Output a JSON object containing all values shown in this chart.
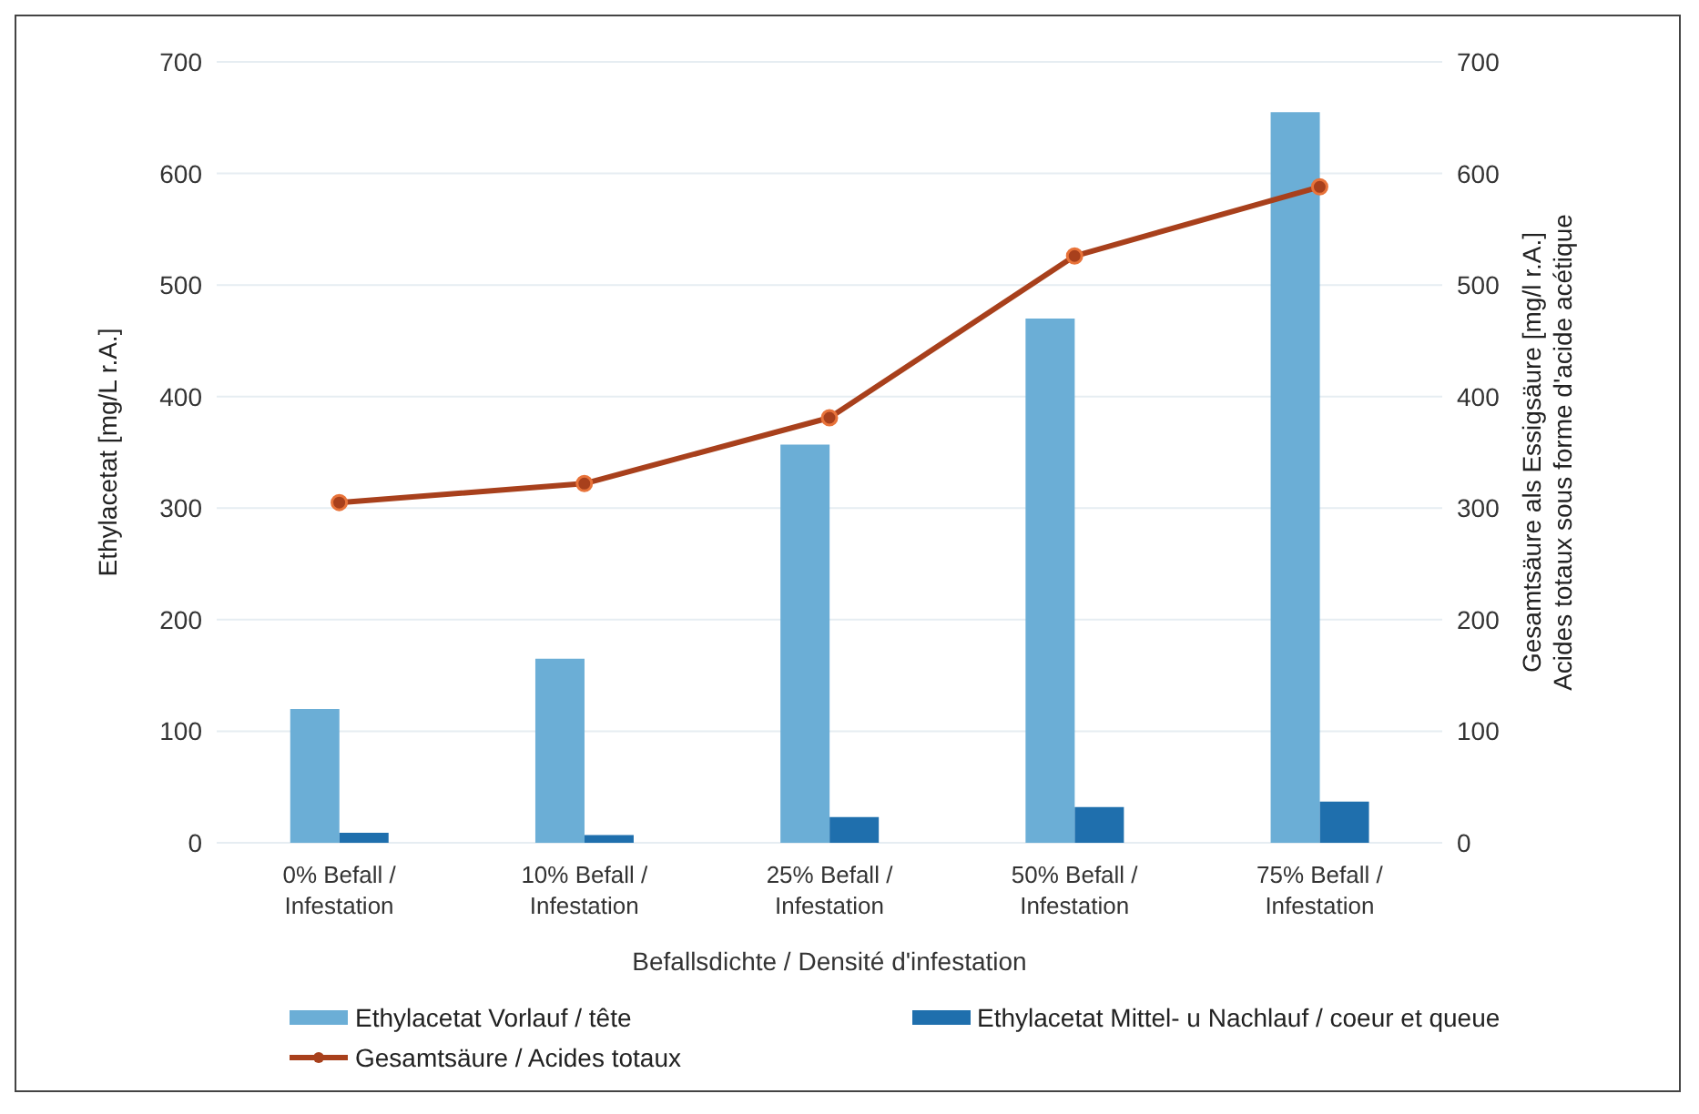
{
  "chart_data": {
    "type": "bar",
    "xlabel": "Befallsdichte / Densité d'infestation",
    "ylabel": "Ethylacetat [mg/L r.A.]",
    "y2label": "Gesamtsäure als Essigsäure [mg/l r.A.]\nAcides totaux sous forme d'acide acétique",
    "categories": [
      "0% Befall / Infestation",
      "10% Befall / Infestation",
      "25% Befall / Infestation",
      "50% Befall / Infestation",
      "75% Befall / Infestation"
    ],
    "series": [
      {
        "name": "Ethylacetat Vorlauf / tête",
        "color": "#6baed6",
        "values": [
          120,
          165,
          357,
          470,
          655
        ]
      },
      {
        "name": "Ethylacetat Mittel- u Nachlauf / coeur et queue",
        "color": "#1f6fad",
        "values": [
          9,
          7,
          23,
          32,
          37
        ]
      },
      {
        "name": "Gesamtsäure / Acides totaux",
        "type": "line",
        "axis": "y2",
        "color": "#a8401c",
        "values": [
          305,
          322,
          381,
          526,
          588
        ]
      }
    ],
    "ylim": [
      0,
      700
    ],
    "yticks": [
      0,
      100,
      200,
      300,
      400,
      500,
      600,
      700
    ],
    "y2lim": [
      0,
      700
    ],
    "y2ticks": [
      0,
      100,
      200,
      300,
      400,
      500,
      600,
      700
    ],
    "grid": "y",
    "legend": "bottom",
    "marker": "circle",
    "line_style": "solid"
  }
}
